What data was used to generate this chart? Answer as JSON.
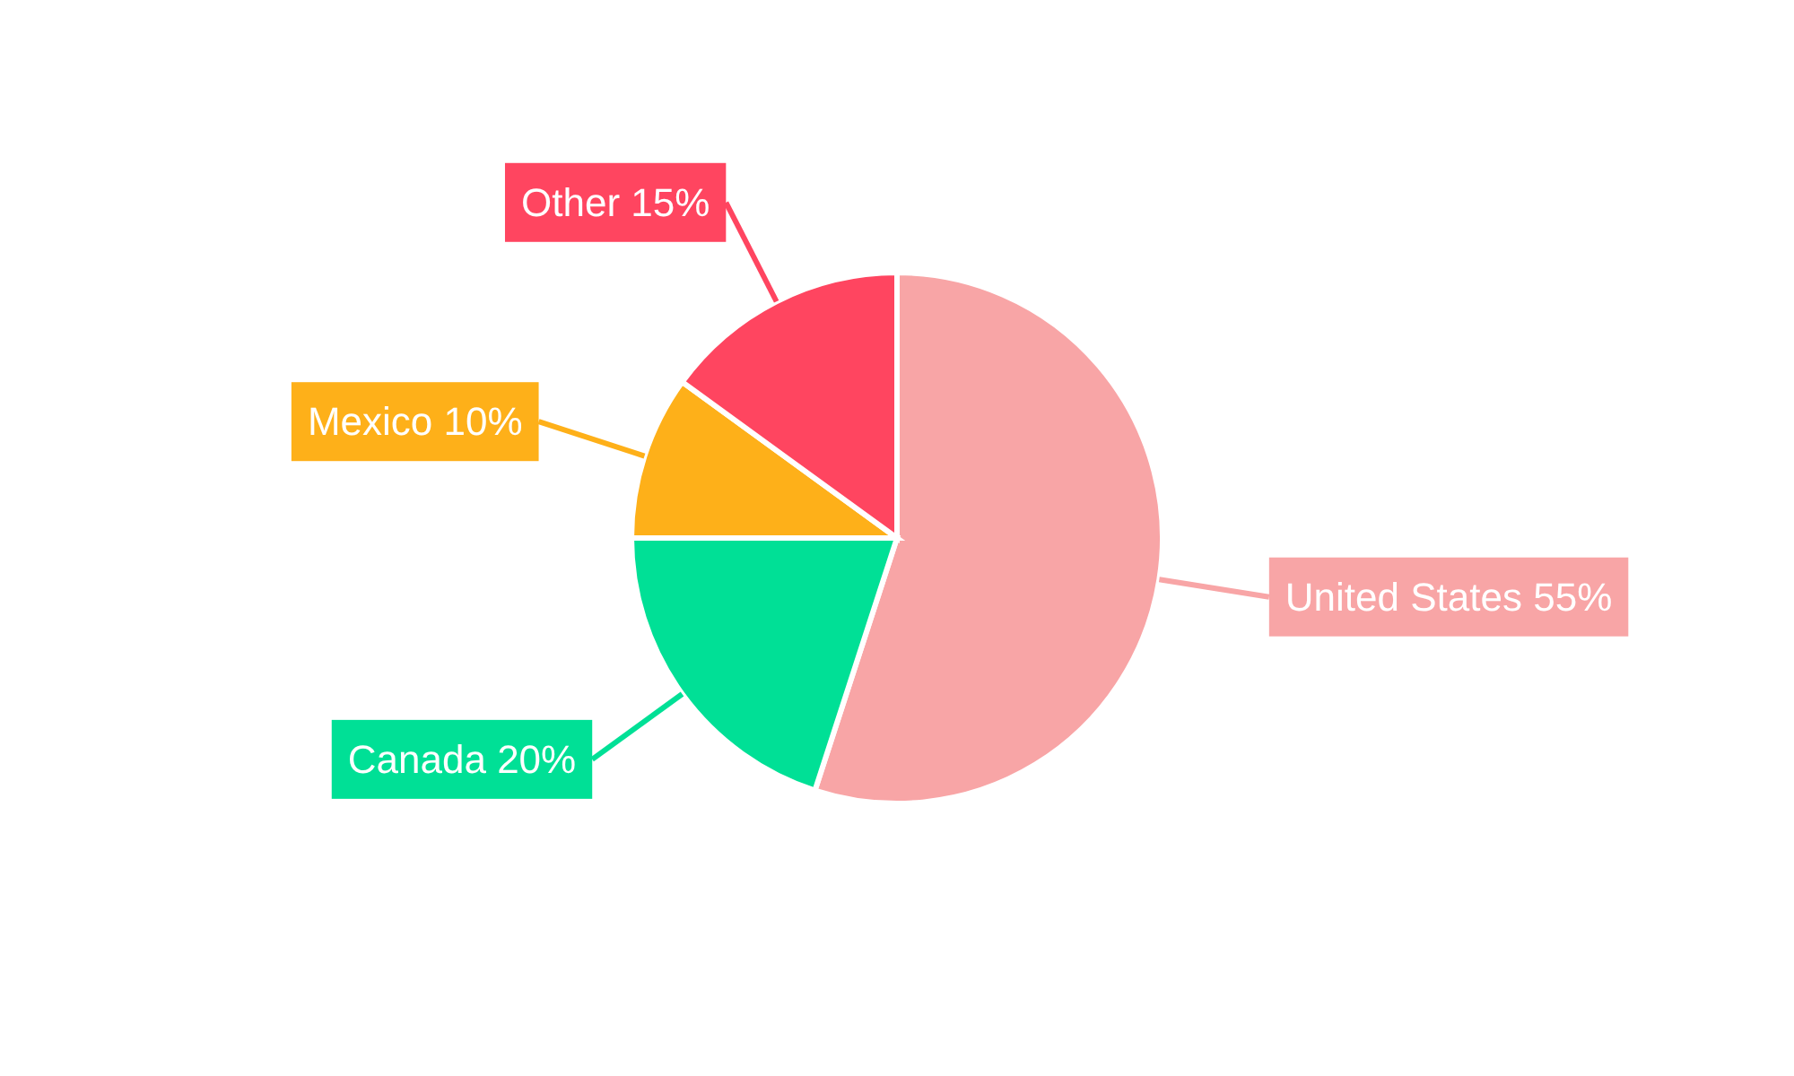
{
  "chart_data": {
    "type": "pie",
    "categories": [
      "United States",
      "Canada",
      "Mexico",
      "Other"
    ],
    "values": [
      55,
      20,
      10,
      15
    ],
    "value_labels": [
      "55%",
      "20%",
      "10%",
      "15%"
    ],
    "colors": [
      "#f8a5a6",
      "#00e096",
      "#feb019",
      "#ff4560"
    ]
  }
}
